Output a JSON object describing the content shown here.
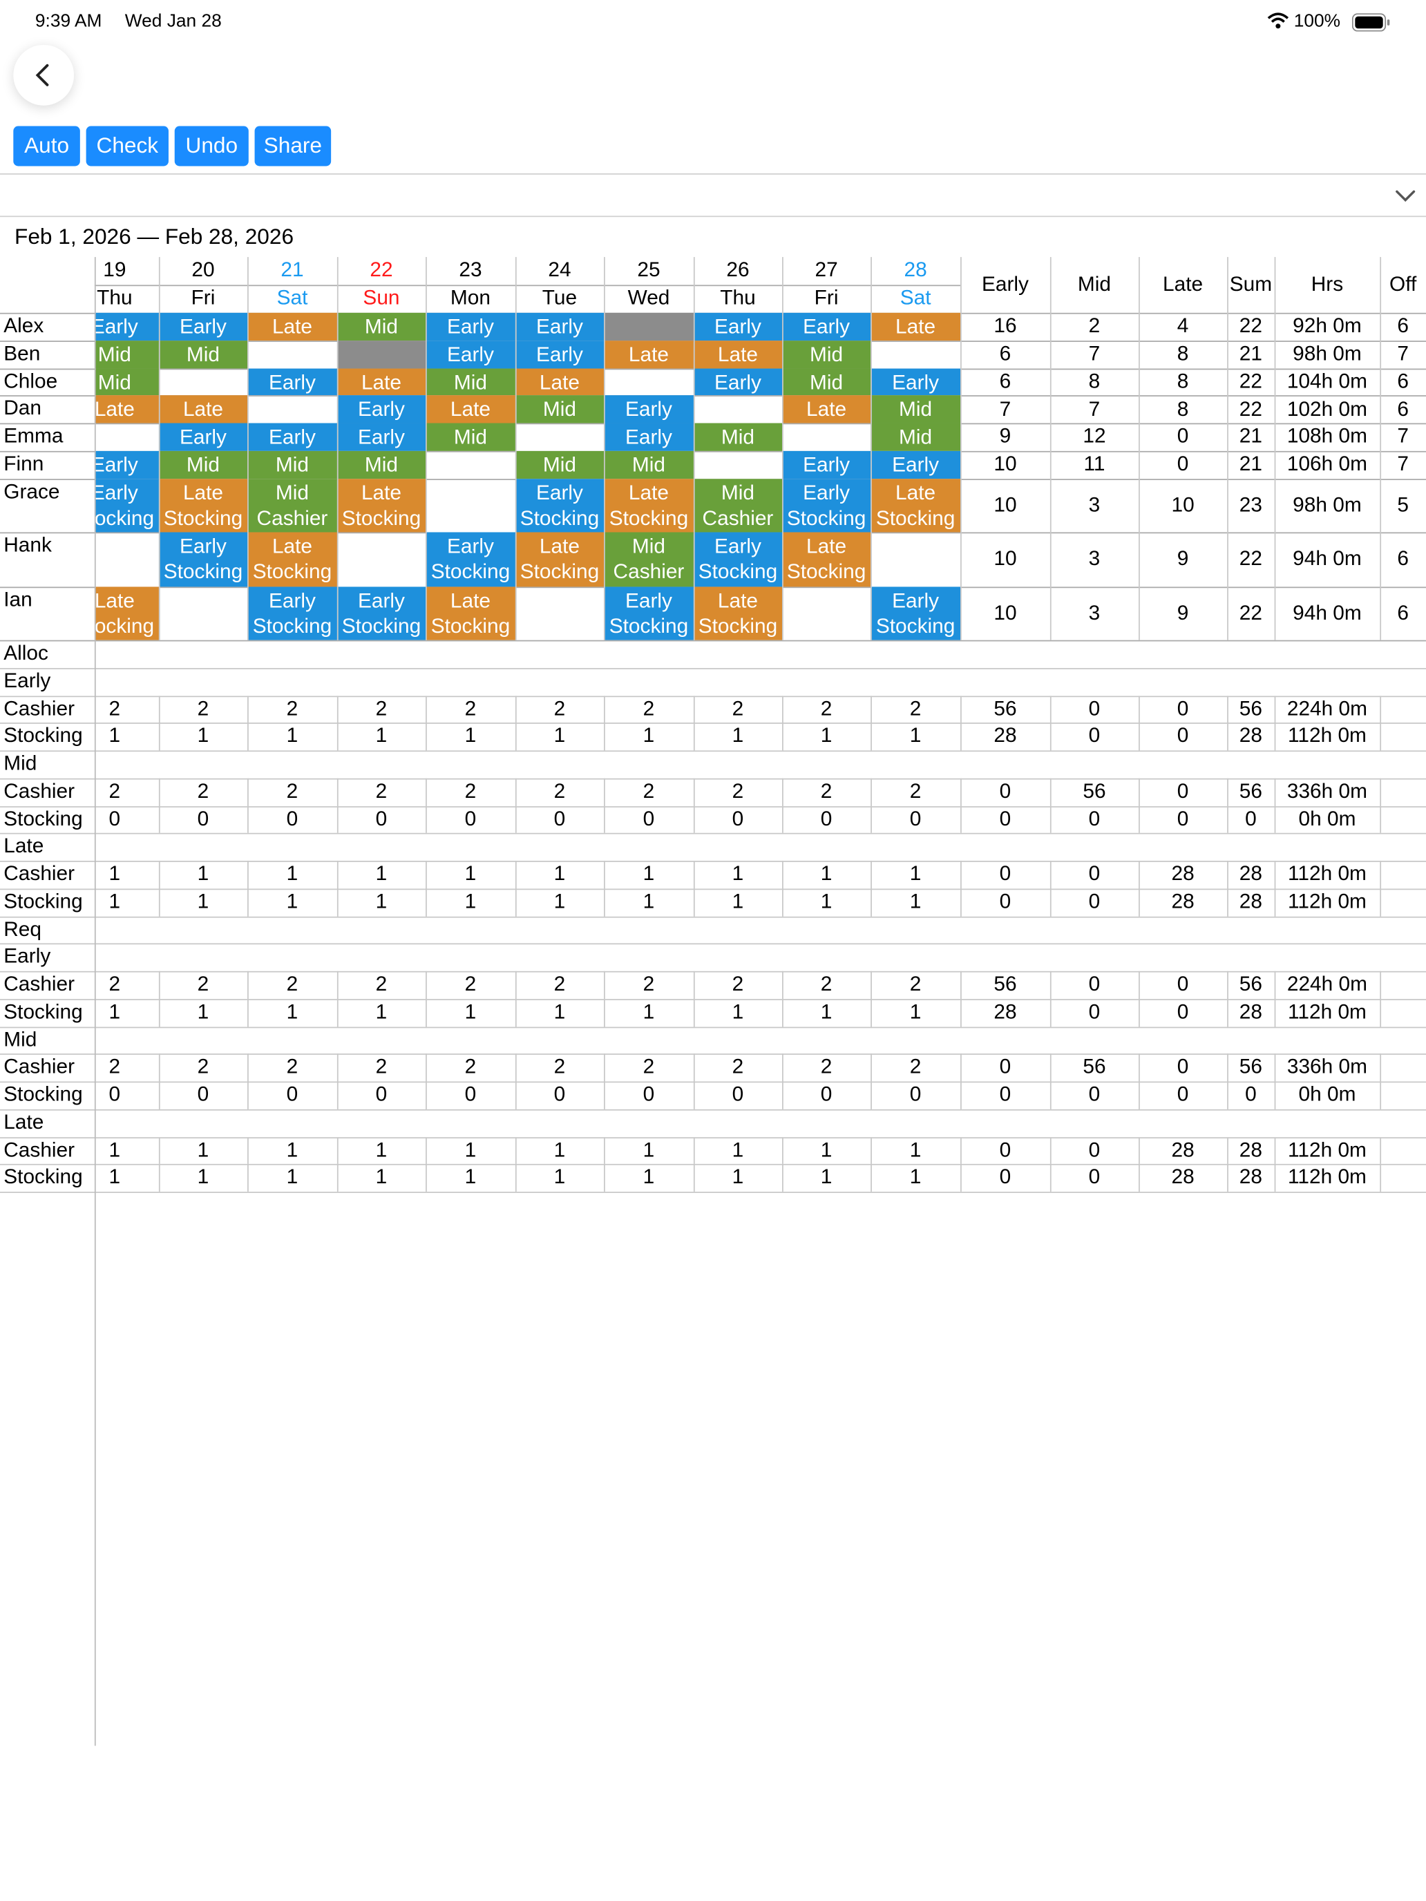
{
  "status_bar": {
    "time": "9:39 AM",
    "date": "Wed Jan 28",
    "battery": "100%"
  },
  "toolbar": {
    "back_icon": "chevron-left-icon",
    "buttons": [
      "Auto",
      "Check",
      "Undo",
      "Share"
    ],
    "collapse_icon": "chevron-down-icon"
  },
  "date_range": "Feb 1, 2026 — Feb 28, 2026",
  "colors": {
    "Early": "#1e90dc",
    "Mid": "#69a03a",
    "Late": "#d98a2e",
    "unavailable": "#8c8c8c",
    "button": "#1a8cff",
    "saturday": "#1a9af0",
    "sunday": "#ff1a1a"
  },
  "days": [
    {
      "num": "19",
      "dow": "Thu",
      "kind": "weekday"
    },
    {
      "num": "20",
      "dow": "Fri",
      "kind": "weekday"
    },
    {
      "num": "21",
      "dow": "Sat",
      "kind": "saturday"
    },
    {
      "num": "22",
      "dow": "Sun",
      "kind": "sunday"
    },
    {
      "num": "23",
      "dow": "Mon",
      "kind": "weekday"
    },
    {
      "num": "24",
      "dow": "Tue",
      "kind": "weekday"
    },
    {
      "num": "25",
      "dow": "Wed",
      "kind": "weekday"
    },
    {
      "num": "26",
      "dow": "Thu",
      "kind": "weekday"
    },
    {
      "num": "27",
      "dow": "Fri",
      "kind": "weekday"
    },
    {
      "num": "28",
      "dow": "Sat",
      "kind": "saturday"
    }
  ],
  "summary_headers": [
    "Early",
    "Mid",
    "Late",
    "Sum",
    "Hrs",
    "Off"
  ],
  "employees": [
    {
      "name": "Alex",
      "shifts": [
        [
          "Early"
        ],
        [
          "Early"
        ],
        [
          "Late"
        ],
        [
          "Mid"
        ],
        [
          "Early"
        ],
        [
          "Early"
        ],
        [
          "X"
        ],
        [
          "Early"
        ],
        [
          "Early"
        ],
        [
          "Late"
        ]
      ],
      "stats": [
        "16",
        "2",
        "4",
        "22",
        "92h 0m",
        "6"
      ]
    },
    {
      "name": "Ben",
      "shifts": [
        [
          "Mid"
        ],
        [
          "Mid"
        ],
        null,
        [
          "X"
        ],
        [
          "Early"
        ],
        [
          "Early"
        ],
        [
          "Late"
        ],
        [
          "Late"
        ],
        [
          "Mid"
        ],
        null
      ],
      "stats": [
        "6",
        "7",
        "8",
        "21",
        "98h 0m",
        "7"
      ]
    },
    {
      "name": "Chloe",
      "shifts": [
        [
          "Mid"
        ],
        null,
        [
          "Early"
        ],
        [
          "Late"
        ],
        [
          "Mid"
        ],
        [
          "Late"
        ],
        null,
        [
          "Early"
        ],
        [
          "Mid"
        ],
        [
          "Early"
        ]
      ],
      "stats": [
        "6",
        "8",
        "8",
        "22",
        "104h 0m",
        "6"
      ]
    },
    {
      "name": "Dan",
      "shifts": [
        [
          "Late"
        ],
        [
          "Late"
        ],
        null,
        [
          "Early"
        ],
        [
          "Late"
        ],
        [
          "Mid"
        ],
        [
          "Early"
        ],
        null,
        [
          "Late"
        ],
        [
          "Mid"
        ]
      ],
      "stats": [
        "7",
        "7",
        "8",
        "22",
        "102h 0m",
        "6"
      ]
    },
    {
      "name": "Emma",
      "shifts": [
        null,
        [
          "Early"
        ],
        [
          "Early"
        ],
        [
          "Early"
        ],
        [
          "Mid"
        ],
        null,
        [
          "Early"
        ],
        [
          "Mid"
        ],
        null,
        [
          "Mid"
        ]
      ],
      "stats": [
        "9",
        "12",
        "0",
        "21",
        "108h 0m",
        "7"
      ]
    },
    {
      "name": "Finn",
      "shifts": [
        [
          "Early"
        ],
        [
          "Mid"
        ],
        [
          "Mid"
        ],
        [
          "Mid"
        ],
        null,
        [
          "Mid"
        ],
        [
          "Mid"
        ],
        null,
        [
          "Early"
        ],
        [
          "Early"
        ]
      ],
      "stats": [
        "10",
        "11",
        "0",
        "21",
        "106h 0m",
        "7"
      ]
    },
    {
      "name": "Grace",
      "shifts": [
        [
          "Early",
          "Stocking"
        ],
        [
          "Late",
          "Stocking"
        ],
        [
          "Mid",
          "Cashier"
        ],
        [
          "Late",
          "Stocking"
        ],
        null,
        [
          "Early",
          "Stocking"
        ],
        [
          "Late",
          "Stocking"
        ],
        [
          "Mid",
          "Cashier"
        ],
        [
          "Early",
          "Stocking"
        ],
        [
          "Late",
          "Stocking"
        ]
      ],
      "stats": [
        "10",
        "3",
        "10",
        "23",
        "98h 0m",
        "5"
      ]
    },
    {
      "name": "Hank",
      "shifts": [
        null,
        [
          "Early",
          "Stocking"
        ],
        [
          "Late",
          "Stocking"
        ],
        null,
        [
          "Early",
          "Stocking"
        ],
        [
          "Late",
          "Stocking"
        ],
        [
          "Mid",
          "Cashier"
        ],
        [
          "Early",
          "Stocking"
        ],
        [
          "Late",
          "Stocking"
        ],
        null
      ],
      "stats": [
        "10",
        "3",
        "9",
        "22",
        "94h 0m",
        "6"
      ]
    },
    {
      "name": "Ian",
      "shifts": [
        [
          "Late",
          "Stocking"
        ],
        null,
        [
          "Early",
          "Stocking"
        ],
        [
          "Early",
          "Stocking"
        ],
        [
          "Late",
          "Stocking"
        ],
        null,
        [
          "Early",
          "Stocking"
        ],
        [
          "Late",
          "Stocking"
        ],
        null,
        [
          "Early",
          "Stocking"
        ]
      ],
      "stats": [
        "10",
        "3",
        "9",
        "22",
        "94h 0m",
        "6"
      ]
    }
  ],
  "sections": [
    {
      "title": "Alloc",
      "groups": [
        {
          "title": "Early",
          "rows": [
            {
              "label": "Cashier",
              "values": [
                "2",
                "2",
                "2",
                "2",
                "2",
                "2",
                "2",
                "2",
                "2",
                "2"
              ],
              "stats": [
                "56",
                "0",
                "0",
                "56",
                "224h 0m"
              ]
            },
            {
              "label": "Stocking",
              "values": [
                "1",
                "1",
                "1",
                "1",
                "1",
                "1",
                "1",
                "1",
                "1",
                "1"
              ],
              "stats": [
                "28",
                "0",
                "0",
                "28",
                "112h 0m"
              ]
            }
          ]
        },
        {
          "title": "Mid",
          "rows": [
            {
              "label": "Cashier",
              "values": [
                "2",
                "2",
                "2",
                "2",
                "2",
                "2",
                "2",
                "2",
                "2",
                "2"
              ],
              "stats": [
                "0",
                "56",
                "0",
                "56",
                "336h 0m"
              ]
            },
            {
              "label": "Stocking",
              "values": [
                "0",
                "0",
                "0",
                "0",
                "0",
                "0",
                "0",
                "0",
                "0",
                "0"
              ],
              "stats": [
                "0",
                "0",
                "0",
                "0",
                "0h 0m"
              ]
            }
          ]
        },
        {
          "title": "Late",
          "rows": [
            {
              "label": "Cashier",
              "values": [
                "1",
                "1",
                "1",
                "1",
                "1",
                "1",
                "1",
                "1",
                "1",
                "1"
              ],
              "stats": [
                "0",
                "0",
                "28",
                "28",
                "112h 0m"
              ]
            },
            {
              "label": "Stocking",
              "values": [
                "1",
                "1",
                "1",
                "1",
                "1",
                "1",
                "1",
                "1",
                "1",
                "1"
              ],
              "stats": [
                "0",
                "0",
                "28",
                "28",
                "112h 0m"
              ]
            }
          ]
        }
      ]
    },
    {
      "title": "Req",
      "groups": [
        {
          "title": "Early",
          "rows": [
            {
              "label": "Cashier",
              "values": [
                "2",
                "2",
                "2",
                "2",
                "2",
                "2",
                "2",
                "2",
                "2",
                "2"
              ],
              "stats": [
                "56",
                "0",
                "0",
                "56",
                "224h 0m"
              ]
            },
            {
              "label": "Stocking",
              "values": [
                "1",
                "1",
                "1",
                "1",
                "1",
                "1",
                "1",
                "1",
                "1",
                "1"
              ],
              "stats": [
                "28",
                "0",
                "0",
                "28",
                "112h 0m"
              ]
            }
          ]
        },
        {
          "title": "Mid",
          "rows": [
            {
              "label": "Cashier",
              "values": [
                "2",
                "2",
                "2",
                "2",
                "2",
                "2",
                "2",
                "2",
                "2",
                "2"
              ],
              "stats": [
                "0",
                "56",
                "0",
                "56",
                "336h 0m"
              ]
            },
            {
              "label": "Stocking",
              "values": [
                "0",
                "0",
                "0",
                "0",
                "0",
                "0",
                "0",
                "0",
                "0",
                "0"
              ],
              "stats": [
                "0",
                "0",
                "0",
                "0",
                "0h 0m"
              ]
            }
          ]
        },
        {
          "title": "Late",
          "rows": [
            {
              "label": "Cashier",
              "values": [
                "1",
                "1",
                "1",
                "1",
                "1",
                "1",
                "1",
                "1",
                "1",
                "1"
              ],
              "stats": [
                "0",
                "0",
                "28",
                "28",
                "112h 0m"
              ]
            },
            {
              "label": "Stocking",
              "values": [
                "1",
                "1",
                "1",
                "1",
                "1",
                "1",
                "1",
                "1",
                "1",
                "1"
              ],
              "stats": [
                "0",
                "0",
                "28",
                "28",
                "112h 0m"
              ]
            }
          ]
        }
      ]
    }
  ]
}
